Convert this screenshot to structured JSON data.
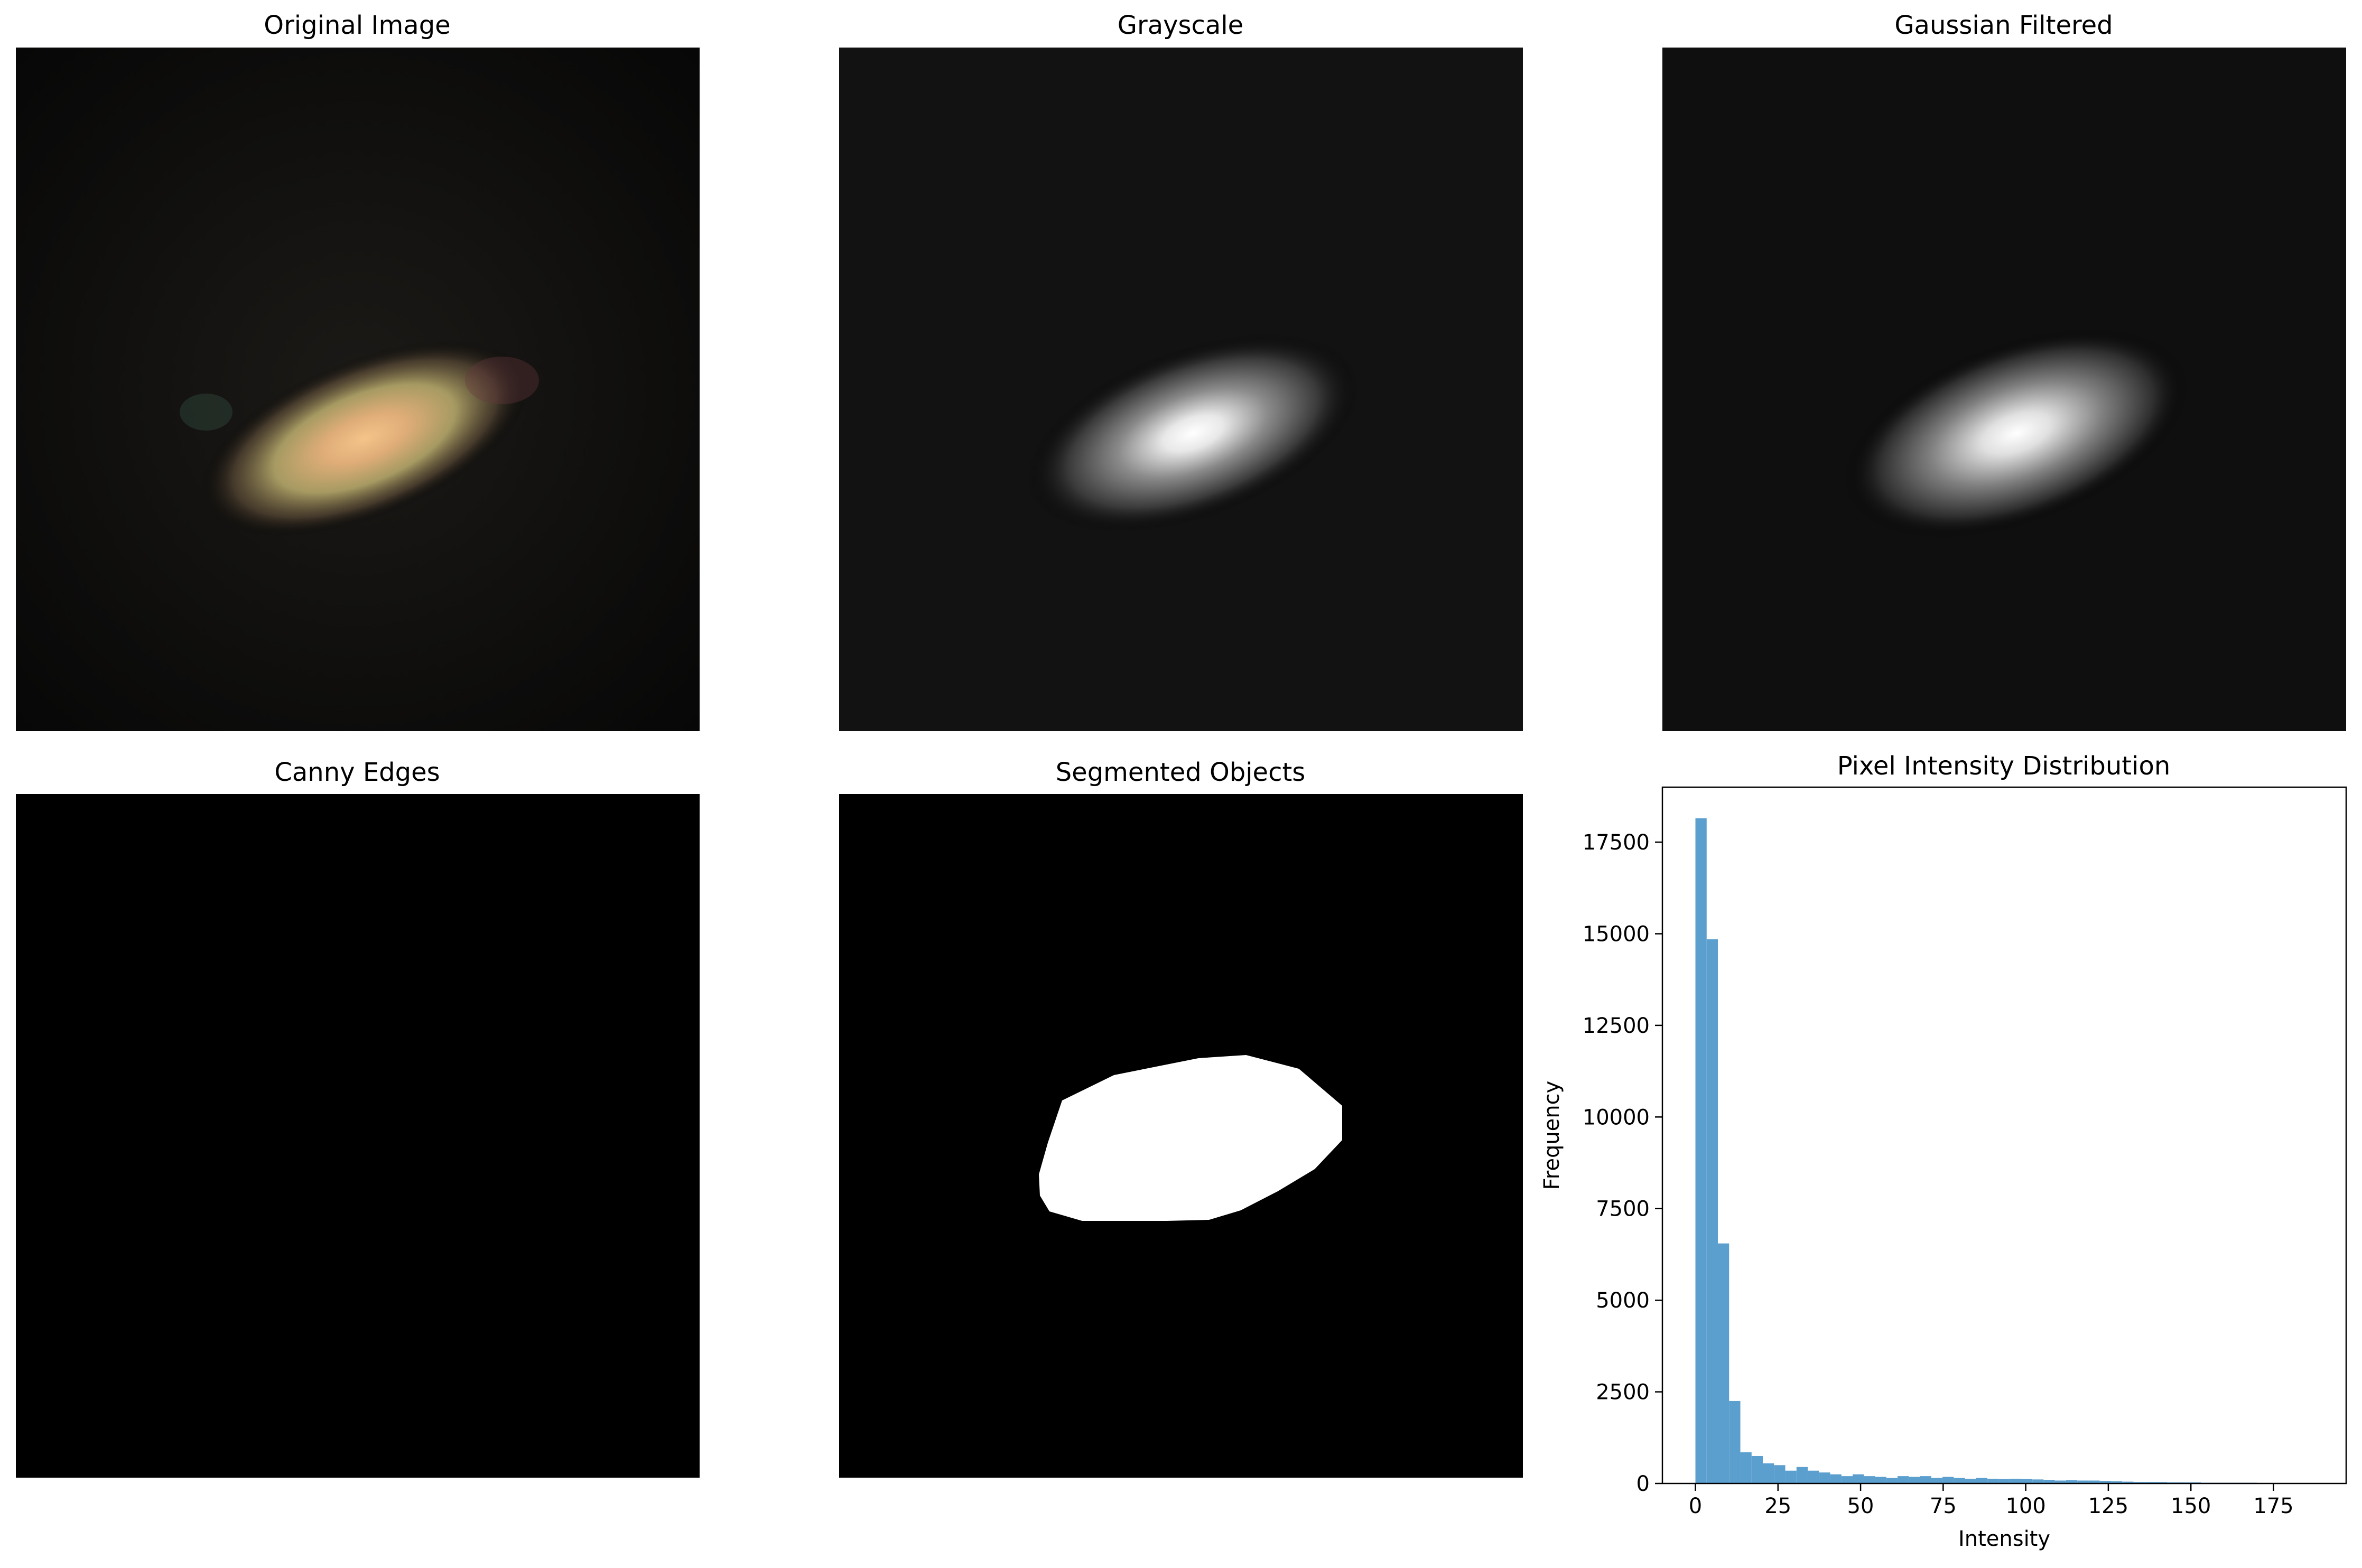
{
  "panels": {
    "original": {
      "title": "Original Image"
    },
    "grayscale": {
      "title": "Grayscale"
    },
    "gaussian": {
      "title": "Gaussian Filtered"
    },
    "canny": {
      "title": "Canny Edges"
    },
    "segmented": {
      "title": "Segmented Objects"
    },
    "histogram": {
      "title": "Pixel Intensity Distribution"
    }
  },
  "colors": {
    "bar": "#5b9fcf",
    "background": "#000000",
    "segment": "#ffffff"
  },
  "chart_data": {
    "type": "bar",
    "title": "Pixel Intensity Distribution",
    "xlabel": "Intensity",
    "ylabel": "Frequency",
    "xlim": [
      -10,
      197
    ],
    "ylim": [
      0,
      19000
    ],
    "xticks": [
      0,
      25,
      50,
      75,
      100,
      125,
      150,
      175
    ],
    "yticks": [
      0,
      2500,
      5000,
      7500,
      10000,
      12500,
      15000,
      17500
    ],
    "grid": false,
    "bin_width": 3.4,
    "bin_edges_start": 0,
    "values": [
      18150,
      14850,
      6550,
      2250,
      850,
      750,
      550,
      500,
      350,
      450,
      350,
      300,
      250,
      200,
      250,
      200,
      180,
      150,
      200,
      180,
      200,
      150,
      180,
      150,
      130,
      150,
      130,
      120,
      130,
      120,
      110,
      100,
      80,
      90,
      80,
      80,
      70,
      60,
      50,
      40,
      40,
      40,
      30,
      30,
      30,
      20,
      20,
      20,
      20,
      20,
      15,
      15,
      10,
      10,
      10
    ]
  }
}
